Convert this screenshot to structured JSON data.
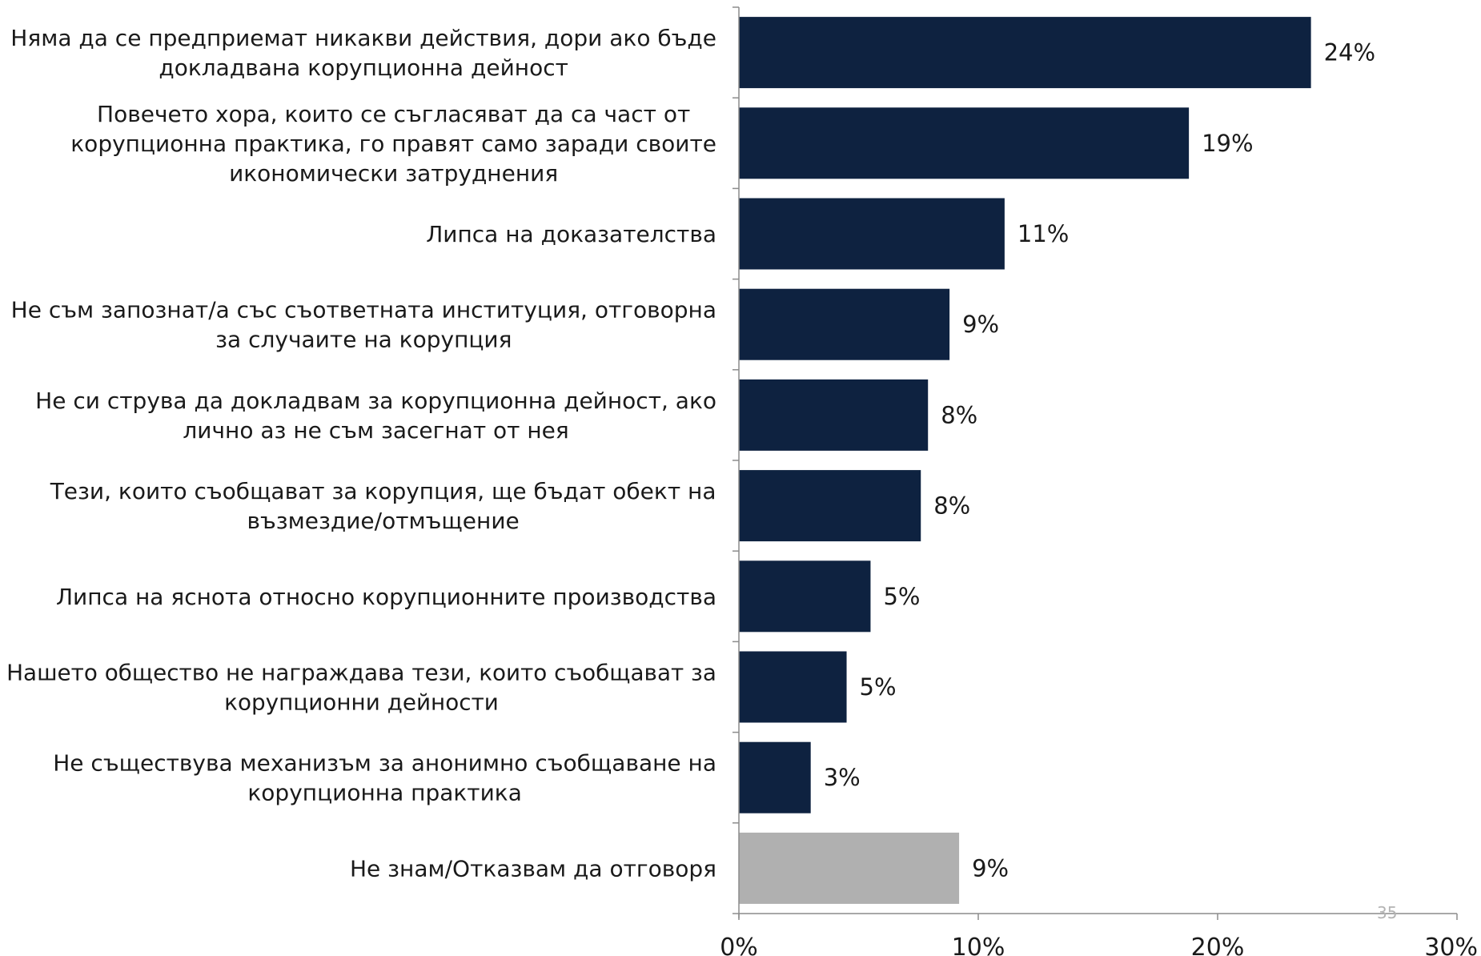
{
  "chart_data": {
    "type": "bar",
    "orientation": "horizontal",
    "categories": [
      [
        "Няма да се предприемат никакви действия, дори ако бъде",
        "докладвана корупционна дейност"
      ],
      [
        "Повечето хора, които се съгласяват да са част от",
        "корупционна практика, го правят само заради своите",
        "икономически затруднения"
      ],
      [
        "Липса на доказателства"
      ],
      [
        "Не съм запознат/а със съответната институция, отговорна",
        "за случаите на корупция"
      ],
      [
        "Не си струва да докладвам за корупционна дейност, ако",
        "лично аз не съм засегнат от нея"
      ],
      [
        "Тези, които съобщават за корупция, ще бъдат обект на",
        "възмездие/отмъщение"
      ],
      [
        "Липса на яснота относно корупционните производства"
      ],
      [
        "Нашето общество не награждава тези, които съобщават за",
        "корупционни дейности"
      ],
      [
        "Не съществува механизъм за анонимно съобщаване на",
        "корупционна практика"
      ],
      [
        "Не знам/Отказвам да отговоря"
      ]
    ],
    "values": [
      24,
      19,
      11,
      9,
      8,
      8,
      5,
      5,
      3,
      9
    ],
    "plotted_values": [
      23.9,
      18.8,
      11.1,
      8.8,
      7.9,
      7.6,
      5.5,
      4.5,
      3.0,
      9.2
    ],
    "value_labels": [
      "24%",
      "19%",
      "11%",
      "9%",
      "8%",
      "8%",
      "5%",
      "5%",
      "3%",
      "9%"
    ],
    "bar_colors": [
      "#0e2240",
      "#0e2240",
      "#0e2240",
      "#0e2240",
      "#0e2240",
      "#0e2240",
      "#0e2240",
      "#0e2240",
      "#0e2240",
      "#b0b0b0"
    ],
    "xlim": [
      0,
      30
    ],
    "xticks": [
      0,
      10,
      20,
      30
    ],
    "xtick_labels": [
      "0%",
      "10%",
      "20%",
      "30%"
    ],
    "grid": false,
    "legend": "none",
    "title": "",
    "xlabel": "",
    "ylabel": ""
  },
  "page_number": "35"
}
